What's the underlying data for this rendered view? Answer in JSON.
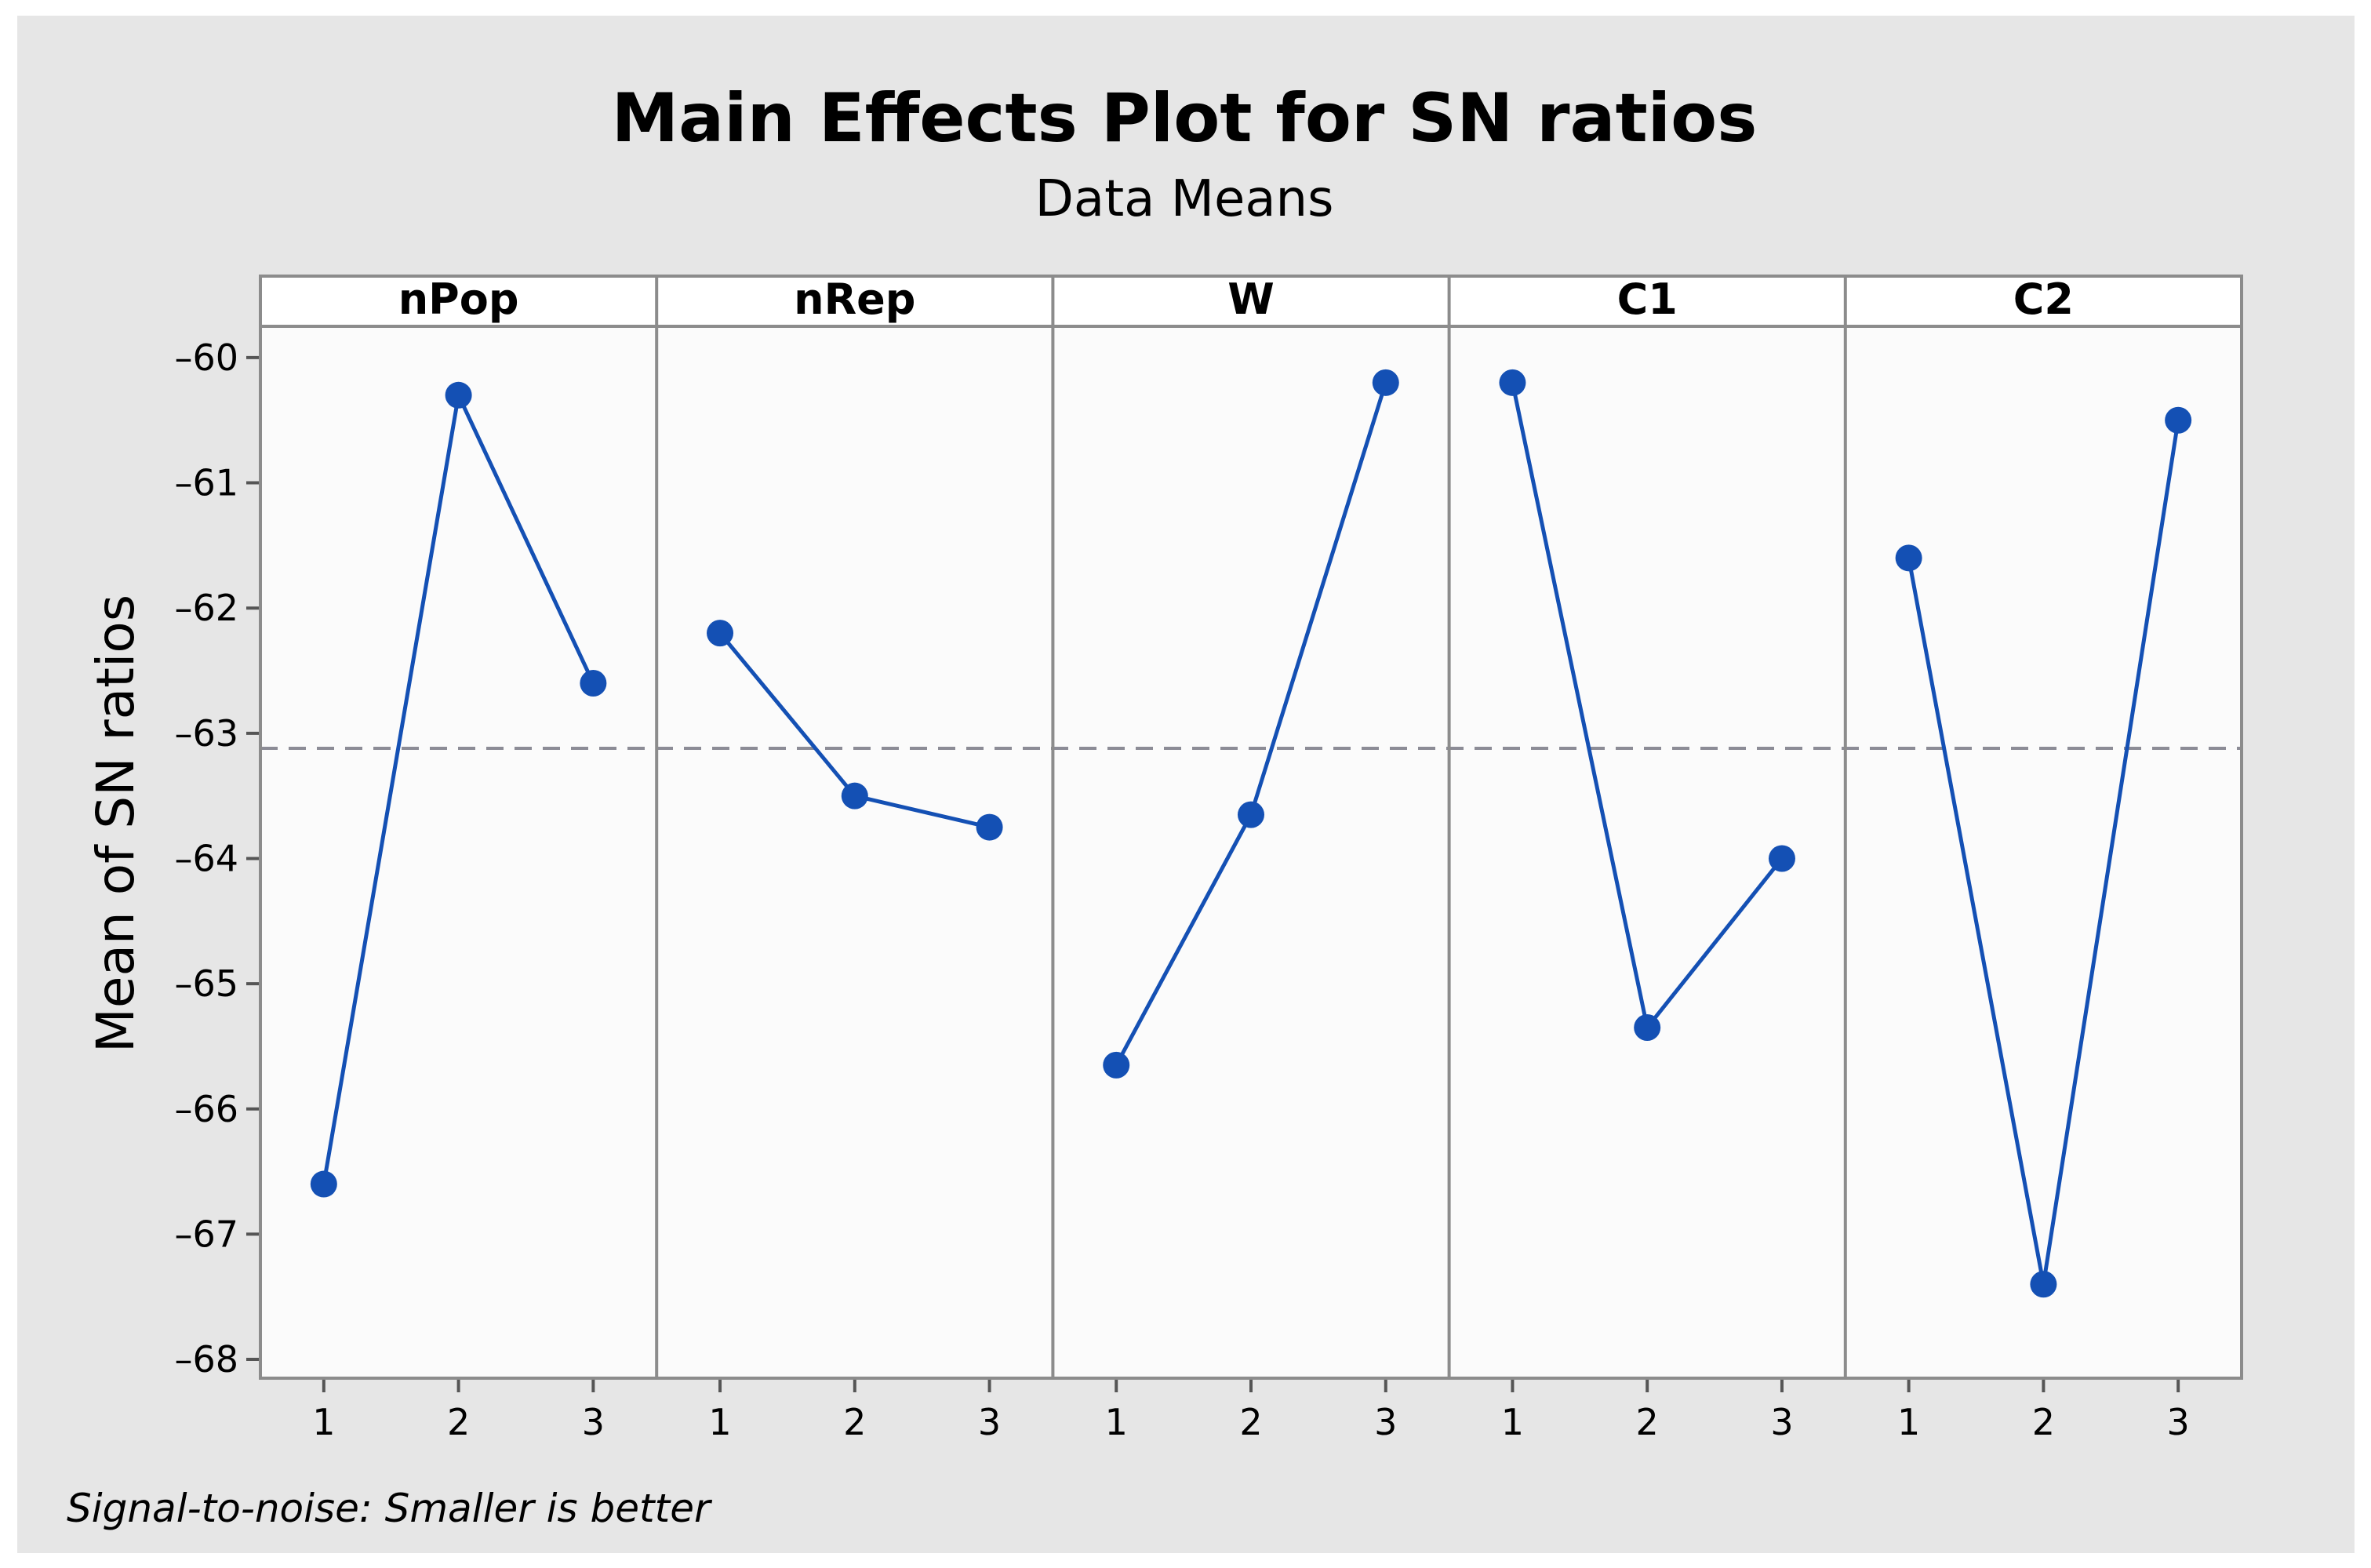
{
  "chart_data": {
    "type": "line",
    "title": "Main Effects Plot for SN ratios",
    "subtitle": "Data Means",
    "ylabel": "Mean of SN ratios",
    "footnote": "Signal-to-noise: Smaller is better",
    "ylim": [
      -68.15,
      -59.75
    ],
    "yticks": [
      -60,
      -61,
      -62,
      -63,
      -64,
      -65,
      -66,
      -67,
      -68
    ],
    "ytick_labels": [
      "–60",
      "–61",
      "–62",
      "–63",
      "–64",
      "–65",
      "–66",
      "–67",
      "–68"
    ],
    "levels": [
      "1",
      "2",
      "3"
    ],
    "grid": false,
    "reference_line": {
      "value": -63.12,
      "style": "dashed",
      "color": "#8c8c96"
    },
    "colors": {
      "series": "#1450b4",
      "frame": "#8c8c8c",
      "panel_bg": "#fbfbfb",
      "figure_bg": "#e6e6e6"
    },
    "panels": [
      {
        "name": "nPop",
        "values": [
          -66.6,
          -60.3,
          -62.6
        ]
      },
      {
        "name": "nRep",
        "values": [
          -62.2,
          -63.5,
          -63.75
        ]
      },
      {
        "name": "W",
        "values": [
          -65.65,
          -63.65,
          -60.2
        ]
      },
      {
        "name": "C1",
        "values": [
          -60.2,
          -65.35,
          -64.0
        ]
      },
      {
        "name": "C2",
        "values": [
          -61.6,
          -67.4,
          -60.5
        ]
      }
    ]
  }
}
